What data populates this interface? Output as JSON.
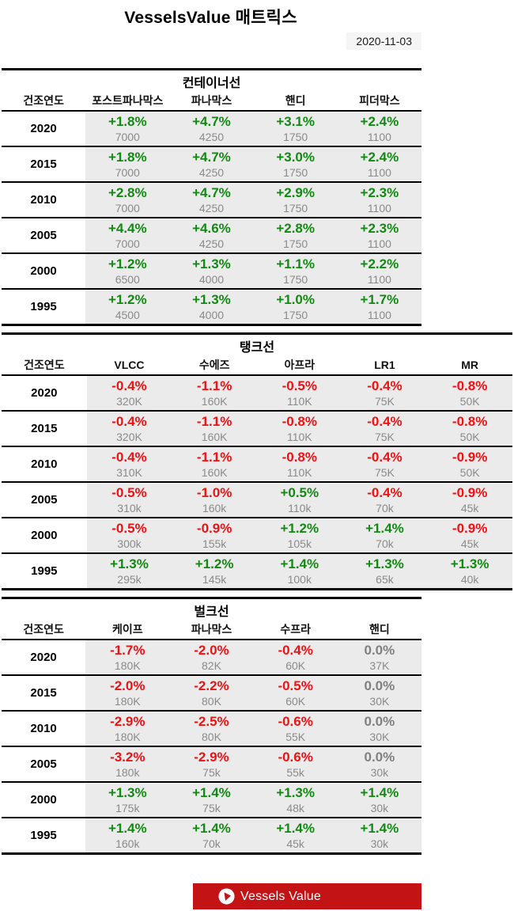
{
  "header": {
    "title": "VesselsValue 매트릭스",
    "date": "2020-11-03"
  },
  "chart_data": [
    {
      "type": "table",
      "title": "컨테이너선",
      "row_header": "건조연도",
      "columns": [
        "포스트파나막스",
        "파나막스",
        "핸디",
        "피더막스"
      ],
      "rows": [
        {
          "year": "2020",
          "cells": [
            {
              "change": "+1.8%",
              "size": "7000"
            },
            {
              "change": "+4.7%",
              "size": "4250"
            },
            {
              "change": "+3.1%",
              "size": "1750"
            },
            {
              "change": "+2.4%",
              "size": "1100"
            }
          ]
        },
        {
          "year": "2015",
          "cells": [
            {
              "change": "+1.8%",
              "size": "7000"
            },
            {
              "change": "+4.7%",
              "size": "4250"
            },
            {
              "change": "+3.0%",
              "size": "1750"
            },
            {
              "change": "+2.4%",
              "size": "1100"
            }
          ]
        },
        {
          "year": "2010",
          "cells": [
            {
              "change": "+2.8%",
              "size": "7000"
            },
            {
              "change": "+4.7%",
              "size": "4250"
            },
            {
              "change": "+2.9%",
              "size": "1750"
            },
            {
              "change": "+2.3%",
              "size": "1100"
            }
          ]
        },
        {
          "year": "2005",
          "cells": [
            {
              "change": "+4.4%",
              "size": "7000"
            },
            {
              "change": "+4.6%",
              "size": "4250"
            },
            {
              "change": "+2.8%",
              "size": "1750"
            },
            {
              "change": "+2.3%",
              "size": "1100"
            }
          ]
        },
        {
          "year": "2000",
          "cells": [
            {
              "change": "+1.2%",
              "size": "6500"
            },
            {
              "change": "+1.3%",
              "size": "4000"
            },
            {
              "change": "+1.1%",
              "size": "1750"
            },
            {
              "change": "+2.2%",
              "size": "1100"
            }
          ]
        },
        {
          "year": "1995",
          "cells": [
            {
              "change": "+1.2%",
              "size": "4500"
            },
            {
              "change": "+1.3%",
              "size": "4000"
            },
            {
              "change": "+1.0%",
              "size": "1750"
            },
            {
              "change": "+1.7%",
              "size": "1100"
            }
          ]
        }
      ]
    },
    {
      "type": "table",
      "title": "탱크선",
      "row_header": "건조연도",
      "columns": [
        "VLCC",
        "수에즈",
        "아프라",
        "LR1",
        "MR"
      ],
      "rows": [
        {
          "year": "2020",
          "cells": [
            {
              "change": "-0.4%",
              "size": "320K"
            },
            {
              "change": "-1.1%",
              "size": "160K"
            },
            {
              "change": "-0.5%",
              "size": "110K"
            },
            {
              "change": "-0.4%",
              "size": "75K"
            },
            {
              "change": "-0.8%",
              "size": "50K"
            }
          ]
        },
        {
          "year": "2015",
          "cells": [
            {
              "change": "-0.4%",
              "size": "320K"
            },
            {
              "change": "-1.1%",
              "size": "160K"
            },
            {
              "change": "-0.8%",
              "size": "110K"
            },
            {
              "change": "-0.4%",
              "size": "75K"
            },
            {
              "change": "-0.8%",
              "size": "50K"
            }
          ]
        },
        {
          "year": "2010",
          "cells": [
            {
              "change": "-0.4%",
              "size": "310K"
            },
            {
              "change": "-1.1%",
              "size": "160K"
            },
            {
              "change": "-0.8%",
              "size": "110K"
            },
            {
              "change": "-0.4%",
              "size": "75K"
            },
            {
              "change": "-0.9%",
              "size": "50K"
            }
          ]
        },
        {
          "year": "2005",
          "cells": [
            {
              "change": "-0.5%",
              "size": "310k"
            },
            {
              "change": "-1.0%",
              "size": "160k"
            },
            {
              "change": "+0.5%",
              "size": "110k"
            },
            {
              "change": "-0.4%",
              "size": "70k"
            },
            {
              "change": "-0.9%",
              "size": "45k"
            }
          ]
        },
        {
          "year": "2000",
          "cells": [
            {
              "change": "-0.5%",
              "size": "300k"
            },
            {
              "change": "-0.9%",
              "size": "155k"
            },
            {
              "change": "+1.2%",
              "size": "105k"
            },
            {
              "change": "+1.4%",
              "size": "70k"
            },
            {
              "change": "-0.9%",
              "size": "45k"
            }
          ]
        },
        {
          "year": "1995",
          "cells": [
            {
              "change": "+1.3%",
              "size": "295k"
            },
            {
              "change": "+1.2%",
              "size": "145k"
            },
            {
              "change": "+1.4%",
              "size": "100k"
            },
            {
              "change": "+1.3%",
              "size": "65k"
            },
            {
              "change": "+1.3%",
              "size": "40k"
            }
          ]
        }
      ]
    },
    {
      "type": "table",
      "title": "벌크선",
      "row_header": "건조연도",
      "columns": [
        "케이프",
        "파나막스",
        "수프라",
        "핸디"
      ],
      "rows": [
        {
          "year": "2020",
          "cells": [
            {
              "change": "-1.7%",
              "size": "180K"
            },
            {
              "change": "-2.0%",
              "size": "82K"
            },
            {
              "change": "-0.4%",
              "size": "60K"
            },
            {
              "change": "0.0%",
              "size": "37K"
            }
          ]
        },
        {
          "year": "2015",
          "cells": [
            {
              "change": "-2.0%",
              "size": "180K"
            },
            {
              "change": "-2.2%",
              "size": "80K"
            },
            {
              "change": "-0.5%",
              "size": "60K"
            },
            {
              "change": "0.0%",
              "size": "30K"
            }
          ]
        },
        {
          "year": "2010",
          "cells": [
            {
              "change": "-2.9%",
              "size": "180K"
            },
            {
              "change": "-2.5%",
              "size": "80K"
            },
            {
              "change": "-0.6%",
              "size": "55K"
            },
            {
              "change": "0.0%",
              "size": "30K"
            }
          ]
        },
        {
          "year": "2005",
          "cells": [
            {
              "change": "-3.2%",
              "size": "180k"
            },
            {
              "change": "-2.9%",
              "size": "75k"
            },
            {
              "change": "-0.6%",
              "size": "55k"
            },
            {
              "change": "0.0%",
              "size": "30k"
            }
          ]
        },
        {
          "year": "2000",
          "cells": [
            {
              "change": "+1.3%",
              "size": "175k"
            },
            {
              "change": "+1.4%",
              "size": "75k"
            },
            {
              "change": "+1.3%",
              "size": "48k"
            },
            {
              "change": "+1.4%",
              "size": "30k"
            }
          ]
        },
        {
          "year": "1995",
          "cells": [
            {
              "change": "+1.4%",
              "size": "160k"
            },
            {
              "change": "+1.4%",
              "size": "70k"
            },
            {
              "change": "+1.4%",
              "size": "45k"
            },
            {
              "change": "+1.4%",
              "size": "30k"
            }
          ]
        }
      ]
    }
  ],
  "footer": {
    "logo_text": "Vessels Value"
  },
  "colors": {
    "positive": "#128912",
    "negative": "#ee1212",
    "neutral": "#808080",
    "cell_background": "#ebebeb",
    "brand_red": "#c41315"
  }
}
